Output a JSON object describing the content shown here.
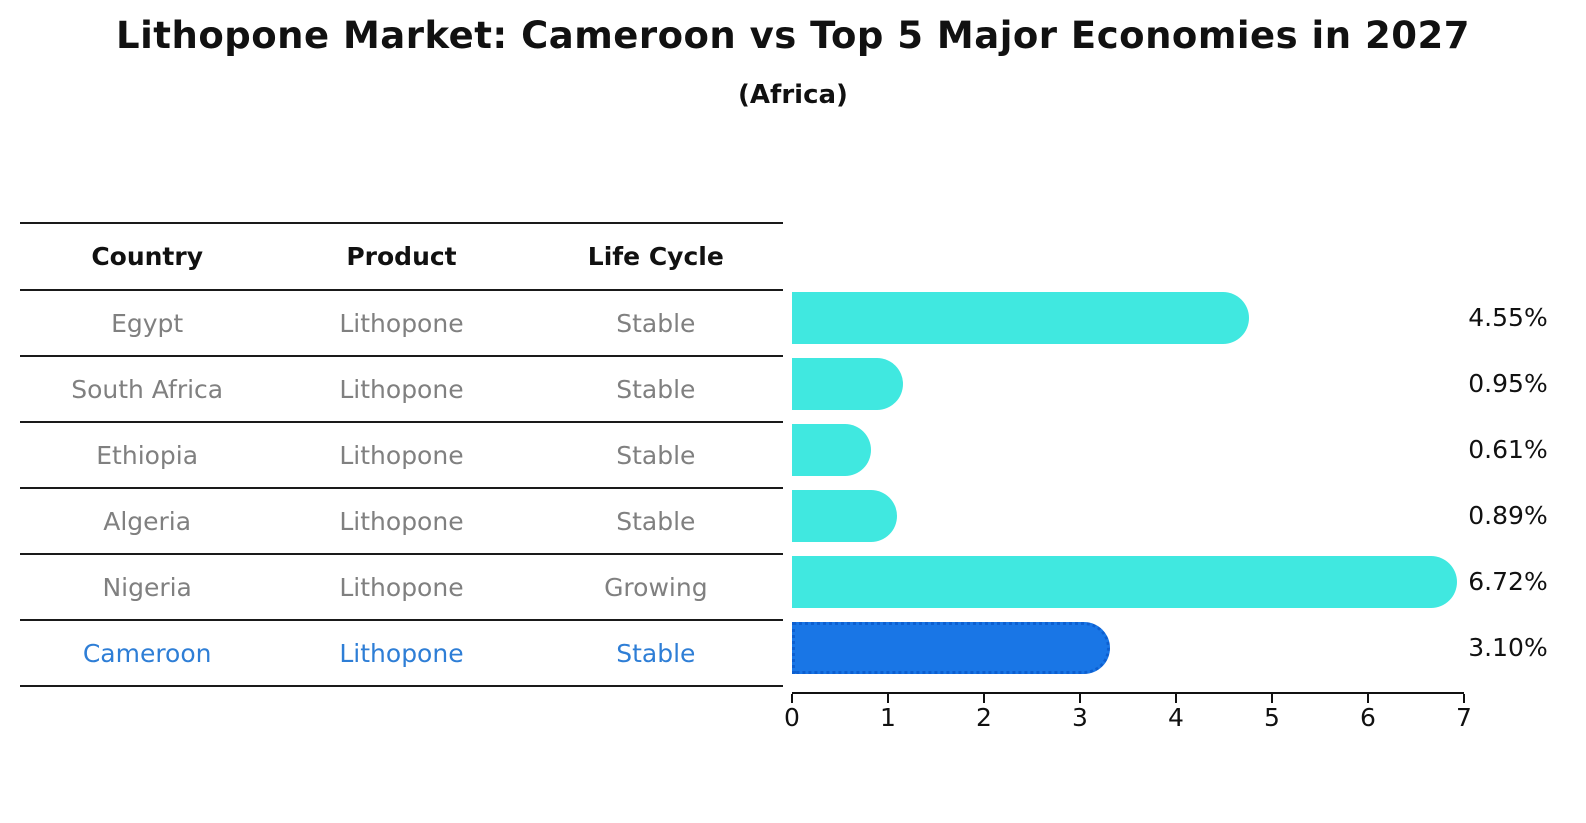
{
  "title": "Lithopone Market: Cameroon vs Top 5 Major Economies in 2027",
  "subtitle": "(Africa)",
  "table": {
    "headers": [
      "Country",
      "Product",
      "Life Cycle"
    ],
    "rows": [
      {
        "country": "Egypt",
        "product": "Lithopone",
        "life_cycle": "Stable",
        "highlight": false
      },
      {
        "country": "South Africa",
        "product": "Lithopone",
        "life_cycle": "Stable",
        "highlight": false
      },
      {
        "country": "Ethiopia",
        "product": "Lithopone",
        "life_cycle": "Stable",
        "highlight": false
      },
      {
        "country": "Algeria",
        "product": "Lithopone",
        "life_cycle": "Stable",
        "highlight": false
      },
      {
        "country": "Nigeria",
        "product": "Lithopone",
        "life_cycle": "Growing",
        "highlight": false
      },
      {
        "country": "Cameroon",
        "product": "Lithopone",
        "life_cycle": "Stable",
        "highlight": true
      }
    ]
  },
  "chart_data": {
    "type": "bar",
    "orientation": "horizontal",
    "title": "Lithopone Market: Cameroon vs Top 5 Major Economies in 2027",
    "subtitle": "(Africa)",
    "categories": [
      "Egypt",
      "South Africa",
      "Ethiopia",
      "Algeria",
      "Nigeria",
      "Cameroon"
    ],
    "values": [
      4.55,
      0.95,
      0.61,
      0.89,
      6.72,
      3.1
    ],
    "value_labels": [
      "4.55%",
      "0.95%",
      "0.61%",
      "0.89%",
      "6.72%",
      "3.10%"
    ],
    "xlim": [
      0,
      7
    ],
    "x_ticks": [
      "0",
      "1",
      "2",
      "3",
      "4",
      "5",
      "6",
      "7"
    ],
    "grid": false,
    "legend": false,
    "bar_color": "#40e8e0",
    "highlight_color": "#1976e6",
    "highlight_index": 5
  },
  "colors": {
    "highlight_text": "#2e7ed6",
    "muted_text": "#808080",
    "heading_text": "#111111"
  }
}
